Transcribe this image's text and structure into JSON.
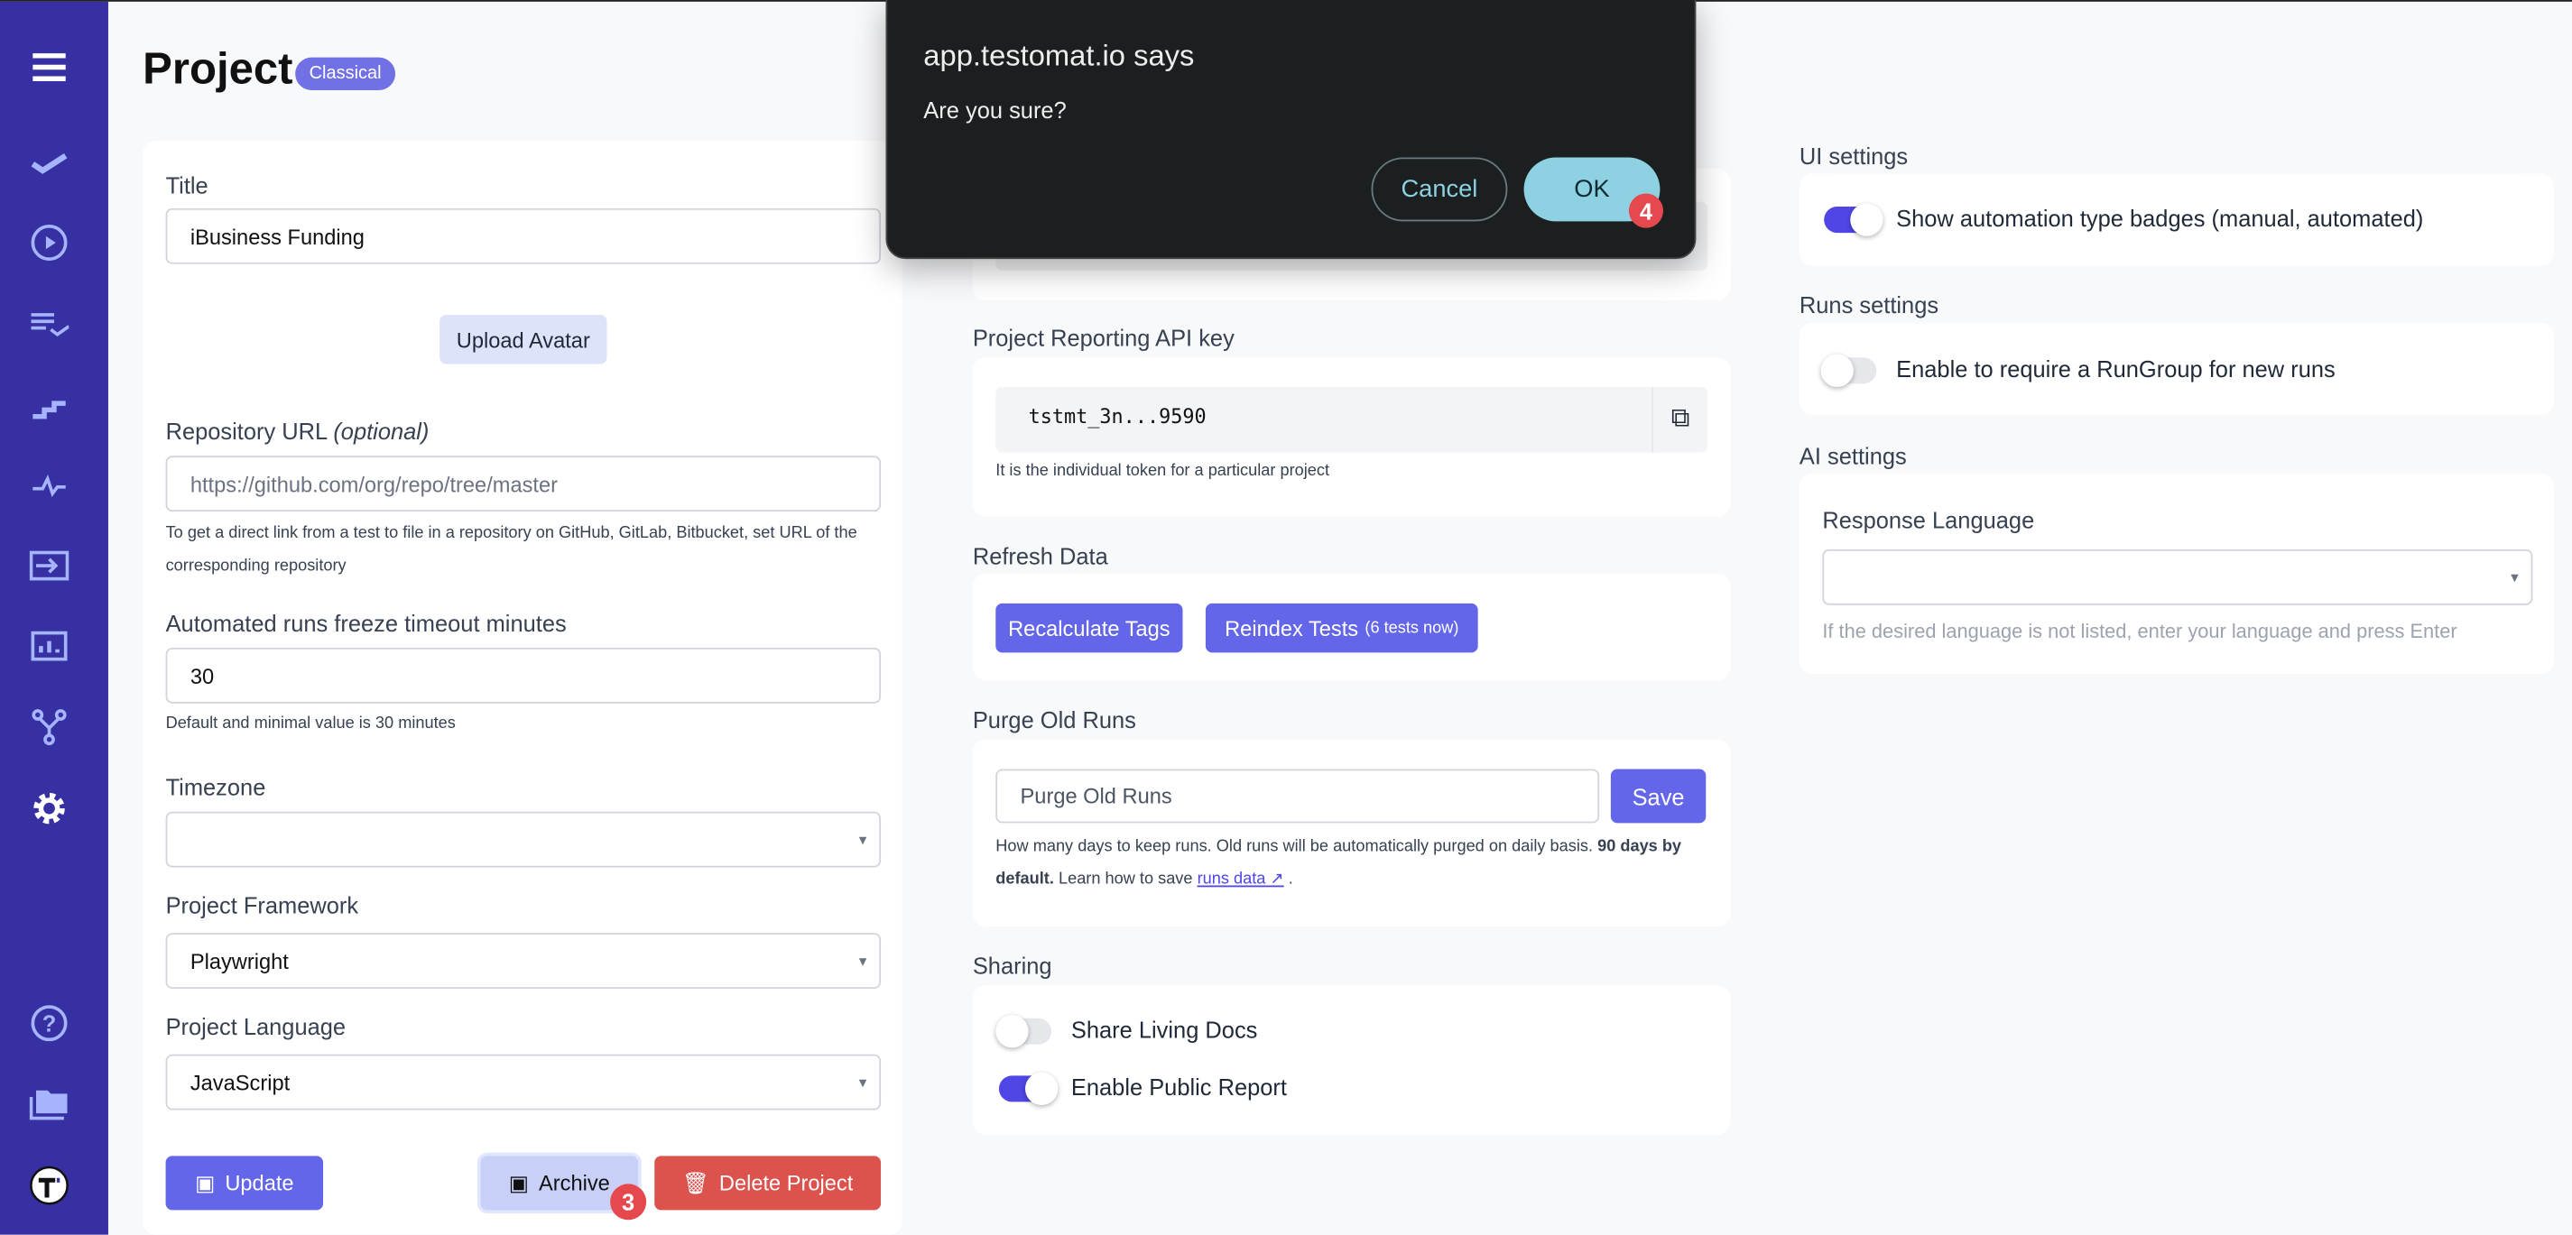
{
  "sidebar": {
    "color": "#3730a3",
    "items": [
      "menu-icon",
      "check-icon",
      "play-circle-icon",
      "checklist-icon",
      "stairs-icon",
      "pulse-icon",
      "import-icon",
      "chart-icon",
      "branch-icon",
      "gear-icon",
      "help-icon",
      "folder-icon",
      "testomat-logo-icon"
    ]
  },
  "header": {
    "title": "Project",
    "badge": "Classical"
  },
  "left": {
    "title_label": "Title",
    "title_value": "iBusiness Funding",
    "upload_avatar": "Upload Avatar",
    "repo_label": "Repository URL",
    "repo_optional": "(optional)",
    "repo_placeholder": "https://github.com/org/repo/tree/master",
    "repo_hint": "To get a direct link from a test to file in a repository on GitHub, GitLab, Bitbucket, set URL of the corresponding repository",
    "timeout_label": "Automated runs freeze timeout minutes",
    "timeout_value": "30",
    "timeout_hint": "Default and minimal value is 30 minutes",
    "timezone_label": "Timezone",
    "timezone_value": "",
    "framework_label": "Project Framework",
    "framework_value": "Playwright",
    "language_label": "Project Language",
    "language_value": "JavaScript",
    "update": "Update",
    "archive": "Archive",
    "delete": "Delete Project",
    "archive_step": "3"
  },
  "middle": {
    "api_label": "Project Reporting API key",
    "api_value": "tstmt_3n...9590",
    "api_hint": "It is the individual token for a particular project",
    "refresh_label": "Refresh Data",
    "recalc": "Recalculate Tags",
    "reindex": "Reindex Tests",
    "reindex_count": "(6 tests now)",
    "purge_label": "Purge Old Runs",
    "purge_placeholder": "Purge Old Runs",
    "save": "Save",
    "purge_hint_1": "How many days to keep runs. Old runs will be automatically purged on daily basis.",
    "purge_hint_bold": "90 days by default.",
    "purge_hint_2": "Learn how to save",
    "purge_link": "runs data",
    "purge_end": ".",
    "sharing_label": "Sharing",
    "share_docs": "Share Living Docs",
    "share_docs_on": false,
    "public_report": "Enable Public Report",
    "public_report_on": true
  },
  "right": {
    "ui_label": "UI settings",
    "ui_toggle": "Show automation type badges (manual, automated)",
    "ui_toggle_on": true,
    "runs_label": "Runs settings",
    "runs_toggle": "Enable to require a RunGroup for new runs",
    "runs_toggle_on": false,
    "ai_label": "AI settings",
    "resp_lang_label": "Response Language",
    "resp_lang_value": "",
    "resp_lang_hint": "If the desired language is not listed, enter your language and press Enter"
  },
  "dialog": {
    "title": "app.testomat.io says",
    "message": "Are you sure?",
    "cancel": "Cancel",
    "ok": "OK",
    "ok_step": "4"
  },
  "colors": {
    "accent": "#6366f1",
    "danger": "#dc524c",
    "dialog_bg": "#1b1f1f",
    "ok_bg": "#8ed1e3"
  }
}
